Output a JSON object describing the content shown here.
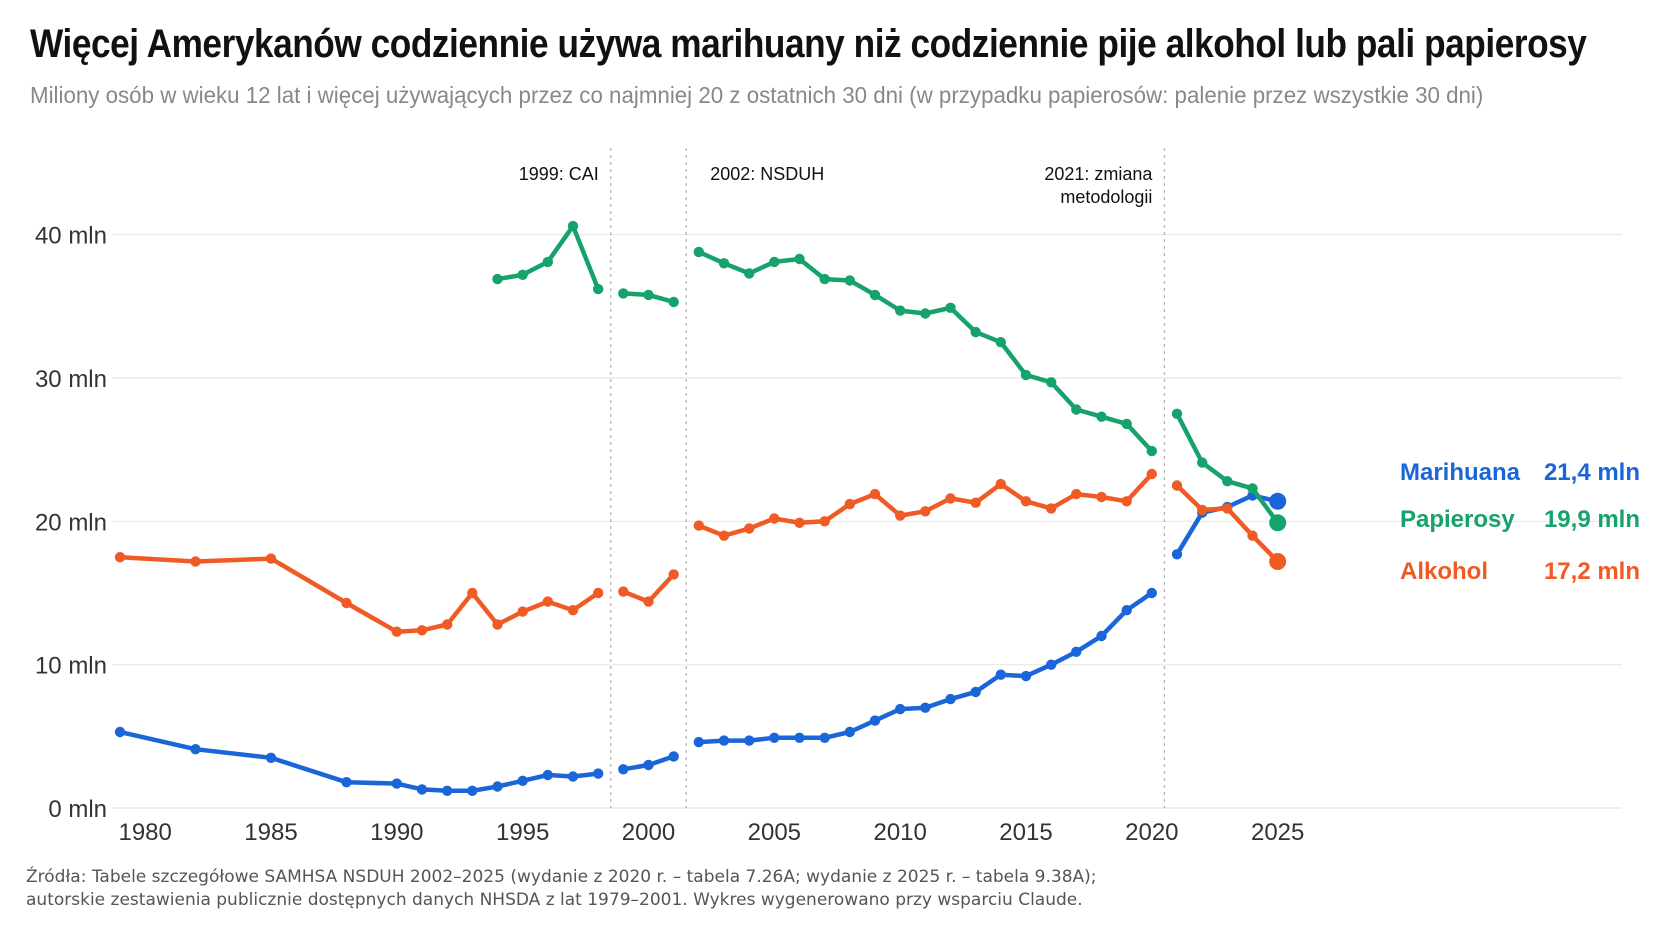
{
  "title": "Więcej Amerykanów codziennie używa marihuany niż codziennie pije alkohol lub pali papierosy",
  "subtitle": "Miliony osób w wieku 12 lat i więcej używających przez co najmniej 20 z ostatnich 30 dni (w przypadku papierosów: palenie przez wszystkie 30 dni)",
  "source": {
    "line1": "Źródła: Tabele szczegółowe SAMHSA NSDUH 2002–2025 (wydanie z 2020 r. – tabela 7.26A; wydanie z 2025 r. – tabela 9.38A);",
    "line2": "autorskie zestawienia publicznie dostępnych danych NHSDA z lat 1979–2001. Wykres wygenerowano przy wsparciu Claude."
  },
  "chart_data": {
    "type": "line",
    "title": "Więcej Amerykanów codziennie używa marihuany niż codziennie pije alkohol lub pali papierosy",
    "subtitle": "Miliony osób w wieku 12 lat i więcej używających przez co najmniej 20 z ostatnich 30 dni (w przypadku papierosów: palenie przez wszystkie 30 dni)",
    "xlabel": "",
    "ylabel": "",
    "xlim": [
      1979,
      2039
    ],
    "ylim": [
      0,
      42
    ],
    "x_ticks": [
      1980,
      1985,
      1990,
      1995,
      2000,
      2005,
      2010,
      2015,
      2020,
      2025
    ],
    "y_ticks": [
      {
        "value": 0,
        "label": "0 mln"
      },
      {
        "value": 10,
        "label": "10 mln"
      },
      {
        "value": 20,
        "label": "20 mln"
      },
      {
        "value": 30,
        "label": "30 mln"
      },
      {
        "value": 40,
        "label": "40 mln"
      }
    ],
    "grid": "horizontal",
    "annotations": [
      {
        "x": 1999,
        "lines": [
          "1999: CAI"
        ]
      },
      {
        "x": 2002,
        "lines": [
          "2002: NSDUH"
        ]
      },
      {
        "x": 2021,
        "lines": [
          "2021: zmiana",
          "metodologii"
        ]
      }
    ],
    "series": [
      {
        "name": "Marihuana",
        "end_label": "21,4 mln",
        "color": "#1a66d9",
        "segments": [
          [
            [
              1979,
              5.3
            ],
            [
              1982,
              4.1
            ],
            [
              1985,
              3.5
            ],
            [
              1988,
              1.8
            ],
            [
              1990,
              1.7
            ],
            [
              1991,
              1.3
            ],
            [
              1992,
              1.2
            ],
            [
              1993,
              1.2
            ],
            [
              1994,
              1.5
            ],
            [
              1995,
              1.9
            ],
            [
              1996,
              2.3
            ],
            [
              1997,
              2.2
            ],
            [
              1998,
              2.4
            ]
          ],
          [
            [
              1999,
              2.7
            ],
            [
              2000,
              3.0
            ],
            [
              2001,
              3.6
            ]
          ],
          [
            [
              2002,
              4.6
            ],
            [
              2003,
              4.7
            ],
            [
              2004,
              4.7
            ],
            [
              2005,
              4.9
            ],
            [
              2006,
              4.9
            ],
            [
              2007,
              4.9
            ],
            [
              2008,
              5.3
            ],
            [
              2009,
              6.1
            ],
            [
              2010,
              6.9
            ],
            [
              2011,
              7.0
            ],
            [
              2012,
              7.6
            ],
            [
              2013,
              8.1
            ],
            [
              2014,
              9.3
            ],
            [
              2015,
              9.2
            ],
            [
              2016,
              10.0
            ],
            [
              2017,
              10.9
            ],
            [
              2018,
              12.0
            ],
            [
              2019,
              13.8
            ],
            [
              2020,
              15.0
            ]
          ],
          [
            [
              2021,
              17.7
            ],
            [
              2022,
              20.6
            ],
            [
              2023,
              21.0
            ],
            [
              2024,
              21.8
            ],
            [
              2025,
              21.4
            ]
          ]
        ]
      },
      {
        "name": "Papierosy",
        "end_label": "19,9 mln",
        "color": "#15a36b",
        "segments": [
          [
            [
              1994,
              36.9
            ],
            [
              1995,
              37.2
            ],
            [
              1996,
              38.1
            ],
            [
              1997,
              40.6
            ],
            [
              1998,
              36.2
            ]
          ],
          [
            [
              1999,
              35.9
            ],
            [
              2000,
              35.8
            ],
            [
              2001,
              35.3
            ]
          ],
          [
            [
              2002,
              38.8
            ],
            [
              2003,
              38.0
            ],
            [
              2004,
              37.3
            ],
            [
              2005,
              38.1
            ],
            [
              2006,
              38.3
            ],
            [
              2007,
              36.9
            ],
            [
              2008,
              36.8
            ],
            [
              2009,
              35.8
            ],
            [
              2010,
              34.7
            ],
            [
              2011,
              34.5
            ],
            [
              2012,
              34.9
            ],
            [
              2013,
              33.2
            ],
            [
              2014,
              32.5
            ],
            [
              2015,
              30.2
            ],
            [
              2016,
              29.7
            ],
            [
              2017,
              27.8
            ],
            [
              2018,
              27.3
            ],
            [
              2019,
              26.8
            ],
            [
              2020,
              24.9
            ]
          ],
          [
            [
              2021,
              27.5
            ],
            [
              2022,
              24.1
            ],
            [
              2023,
              22.8
            ],
            [
              2024,
              22.3
            ],
            [
              2025,
              19.9
            ]
          ]
        ]
      },
      {
        "name": "Alkohol",
        "end_label": "17,2 mln",
        "color": "#f05a24",
        "segments": [
          [
            [
              1979,
              17.5
            ],
            [
              1982,
              17.2
            ],
            [
              1985,
              17.4
            ],
            [
              1988,
              14.3
            ],
            [
              1990,
              12.3
            ],
            [
              1991,
              12.4
            ],
            [
              1992,
              12.8
            ],
            [
              1993,
              15.0
            ],
            [
              1994,
              12.8
            ],
            [
              1995,
              13.7
            ],
            [
              1996,
              14.4
            ],
            [
              1997,
              13.8
            ],
            [
              1998,
              15.0
            ]
          ],
          [
            [
              1999,
              15.1
            ],
            [
              2000,
              14.4
            ],
            [
              2001,
              16.3
            ]
          ],
          [
            [
              2002,
              19.7
            ],
            [
              2003,
              19.0
            ],
            [
              2004,
              19.5
            ],
            [
              2005,
              20.2
            ],
            [
              2006,
              19.9
            ],
            [
              2007,
              20.0
            ],
            [
              2008,
              21.2
            ],
            [
              2009,
              21.9
            ],
            [
              2010,
              20.4
            ],
            [
              2011,
              20.7
            ],
            [
              2012,
              21.6
            ],
            [
              2013,
              21.3
            ],
            [
              2014,
              22.6
            ],
            [
              2015,
              21.4
            ],
            [
              2016,
              20.9
            ],
            [
              2017,
              21.9
            ],
            [
              2018,
              21.7
            ],
            [
              2019,
              21.4
            ],
            [
              2020,
              23.3
            ]
          ],
          [
            [
              2021,
              22.5
            ],
            [
              2022,
              20.8
            ],
            [
              2023,
              20.9
            ],
            [
              2024,
              19.0
            ],
            [
              2025,
              17.2
            ]
          ]
        ]
      }
    ]
  }
}
